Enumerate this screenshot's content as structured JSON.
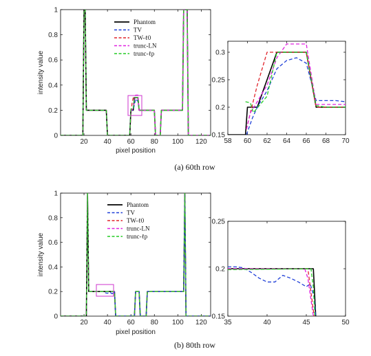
{
  "captions": [
    "(a)  60th row",
    "(b)  80th row"
  ],
  "legend": [
    "Phantom",
    "TV",
    "TW-ℓ0",
    "trunc-LN",
    "trunc-ℓp"
  ],
  "colors": {
    "Phantom": "#000000",
    "TV": "#1f3fd8",
    "TW-ℓ0": "#e0222a",
    "trunc-LN": "#e020e0",
    "trunc-ℓp": "#22cc22",
    "box": "#cc33cc"
  },
  "chart_data": [
    {
      "type": "line",
      "panel": "a-main",
      "xlabel": "pixel position",
      "ylabel": "intensity value",
      "xlim": [
        0,
        128
      ],
      "ylim": [
        0,
        1
      ],
      "xticks": [
        20,
        40,
        60,
        80,
        100,
        120
      ],
      "yticks": [
        0,
        0.2,
        0.4,
        0.6,
        0.8,
        1
      ],
      "series": [
        {
          "name": "Phantom",
          "x": [
            0,
            19,
            20,
            21,
            22,
            38,
            39,
            40,
            59,
            60,
            62,
            63,
            66,
            67,
            68,
            80,
            81,
            82,
            85,
            86,
            104,
            105,
            106,
            108,
            109,
            110,
            128
          ],
          "y": [
            0,
            0,
            1,
            1,
            0.2,
            0.2,
            0.2,
            0,
            0,
            0.2,
            0.2,
            0.3,
            0.3,
            0.2,
            0.2,
            0.2,
            0,
            0,
            0,
            0.2,
            0.2,
            1,
            1,
            1,
            0,
            0,
            0
          ]
        },
        {
          "name": "TV",
          "x": [
            0,
            19,
            20,
            21,
            22,
            38,
            39,
            40,
            59,
            60,
            62,
            64,
            66,
            67,
            68,
            80,
            81,
            82,
            85,
            86,
            104,
            105,
            106,
            108,
            109,
            110,
            128
          ],
          "y": [
            0,
            0,
            1,
            1,
            0.2,
            0.2,
            0.2,
            0,
            0,
            0.2,
            0.2,
            0.29,
            0.27,
            0.21,
            0.2,
            0.2,
            0,
            0,
            0,
            0.2,
            0.2,
            1,
            1,
            1,
            0,
            0,
            0
          ]
        },
        {
          "name": "TW-ℓ0",
          "x": [
            0,
            19,
            20,
            21,
            22,
            38,
            39,
            40,
            59,
            60,
            61,
            62,
            66,
            67,
            68,
            80,
            81,
            82,
            85,
            86,
            104,
            105,
            106,
            108,
            109,
            110,
            128
          ],
          "y": [
            0,
            0,
            1,
            1,
            0.2,
            0.2,
            0.2,
            0,
            0,
            0.17,
            0.26,
            0.3,
            0.3,
            0.2,
            0.2,
            0.2,
            0,
            0,
            0,
            0.2,
            0.2,
            1,
            1,
            1,
            0,
            0,
            0
          ]
        },
        {
          "name": "trunc-LN",
          "x": [
            0,
            19,
            20,
            21,
            22,
            38,
            39,
            40,
            59,
            60,
            62,
            64,
            66,
            67,
            68,
            80,
            81,
            82,
            85,
            86,
            104,
            105,
            106,
            108,
            109,
            110,
            128
          ],
          "y": [
            0,
            0,
            1,
            1,
            0.2,
            0.2,
            0.2,
            0,
            0,
            0.19,
            0.22,
            0.32,
            0.32,
            0.2,
            0.2,
            0.2,
            0,
            0,
            0,
            0.2,
            0.2,
            1,
            1,
            1,
            0,
            0,
            0
          ]
        },
        {
          "name": "trunc-ℓp",
          "x": [
            0,
            19,
            20,
            21,
            22,
            38,
            39,
            40,
            59,
            60,
            62,
            63,
            66,
            67,
            68,
            80,
            81,
            82,
            85,
            86,
            104,
            105,
            106,
            108,
            109,
            110,
            128
          ],
          "y": [
            0,
            0,
            1,
            1,
            0.2,
            0.2,
            0.2,
            0,
            0,
            0.21,
            0.21,
            0.3,
            0.3,
            0.21,
            0.2,
            0.2,
            0,
            0,
            0,
            0.2,
            0.2,
            1,
            1,
            1,
            0,
            0,
            0
          ]
        }
      ]
    },
    {
      "type": "line",
      "panel": "a-zoom",
      "xlim": [
        58,
        70
      ],
      "ylim": [
        0.15,
        0.32
      ],
      "xticks": [
        58,
        60,
        62,
        64,
        66,
        68,
        70
      ],
      "yticks": [
        0.15,
        0.2,
        0.25,
        0.3
      ],
      "series": [
        {
          "name": "Phantom",
          "x": [
            58,
            59.8,
            60,
            61,
            63,
            66,
            67,
            70
          ],
          "y": [
            0.15,
            0.15,
            0.2,
            0.2,
            0.3,
            0.3,
            0.2,
            0.2
          ]
        },
        {
          "name": "TV",
          "x": [
            59.9,
            60.5,
            61,
            62,
            63,
            64,
            65,
            66,
            67,
            68,
            69,
            70
          ],
          "y": [
            0.15,
            0.18,
            0.2,
            0.23,
            0.27,
            0.285,
            0.29,
            0.28,
            0.212,
            0.212,
            0.212,
            0.21
          ]
        },
        {
          "name": "TW-ℓ0",
          "x": [
            59.9,
            60.3,
            61,
            62,
            63,
            66,
            67,
            68,
            70
          ],
          "y": [
            0.16,
            0.19,
            0.24,
            0.3,
            0.3,
            0.3,
            0.2,
            0.2,
            0.2
          ]
        },
        {
          "name": "trunc-LN",
          "x": [
            59.9,
            60.3,
            61,
            62,
            63,
            64,
            65,
            66,
            67,
            68,
            70
          ],
          "y": [
            0.16,
            0.19,
            0.21,
            0.24,
            0.29,
            0.315,
            0.315,
            0.315,
            0.205,
            0.205,
            0.205
          ]
        },
        {
          "name": "trunc-ℓp",
          "x": [
            59.8,
            60.3,
            60.6,
            62,
            63,
            66,
            67,
            68,
            70
          ],
          "y": [
            0.21,
            0.208,
            0.19,
            0.22,
            0.3,
            0.3,
            0.203,
            0.2,
            0.2
          ]
        }
      ]
    },
    {
      "type": "line",
      "panel": "b-main",
      "xlabel": "pixel position",
      "ylabel": "intensity value",
      "xlim": [
        0,
        128
      ],
      "ylim": [
        0,
        1
      ],
      "xticks": [
        20,
        40,
        60,
        80,
        100,
        120
      ],
      "yticks": [
        0,
        0.2,
        0.4,
        0.6,
        0.8,
        1
      ],
      "series": [
        {
          "name": "Phantom",
          "x": [
            0,
            22,
            23,
            24,
            46,
            47,
            63,
            64,
            67,
            68,
            73,
            74,
            104,
            105,
            106,
            107,
            128
          ],
          "y": [
            0,
            0,
            1,
            0.2,
            0.2,
            0,
            0,
            0.2,
            0.2,
            0,
            0,
            0.2,
            0.2,
            0.2,
            1,
            0,
            0
          ]
        },
        {
          "name": "TV",
          "x": [
            0,
            22,
            23,
            24,
            36,
            38,
            40,
            42,
            44,
            46,
            47,
            63,
            64,
            67,
            68,
            73,
            74,
            104,
            105,
            106,
            107,
            128
          ],
          "y": [
            0,
            0,
            1,
            0.2,
            0.2,
            0.19,
            0.186,
            0.195,
            0.182,
            0.2,
            0,
            0,
            0.2,
            0.2,
            0,
            0,
            0.2,
            0.2,
            0.2,
            1,
            0,
            0
          ]
        },
        {
          "name": "TW-ℓ0",
          "x": [
            0,
            22,
            23,
            24,
            46,
            47,
            63,
            64,
            67,
            68,
            73,
            74,
            104,
            105,
            106,
            107,
            128
          ],
          "y": [
            0,
            0,
            1,
            0.2,
            0.2,
            0,
            0,
            0.2,
            0.2,
            0,
            0,
            0.2,
            0.2,
            0.2,
            1,
            0,
            0
          ]
        },
        {
          "name": "trunc-LN",
          "x": [
            0,
            22,
            23,
            24,
            46,
            47,
            63,
            64,
            67,
            68,
            73,
            74,
            104,
            105,
            106,
            107,
            128
          ],
          "y": [
            0,
            0,
            1,
            0.2,
            0.2,
            0,
            0,
            0.2,
            0.2,
            0,
            0,
            0.2,
            0.2,
            0.2,
            1,
            0,
            0
          ]
        },
        {
          "name": "trunc-ℓp",
          "x": [
            0,
            22,
            23,
            24,
            46,
            47,
            63,
            64,
            67,
            68,
            73,
            74,
            104,
            105,
            106,
            107,
            128
          ],
          "y": [
            0,
            0,
            1,
            0.2,
            0.2,
            0,
            0,
            0.2,
            0.2,
            0,
            0,
            0.2,
            0.2,
            0.2,
            1,
            0,
            0
          ]
        }
      ]
    },
    {
      "type": "line",
      "panel": "b-zoom",
      "xlim": [
        35,
        50
      ],
      "ylim": [
        0.15,
        0.25
      ],
      "xticks": [
        35,
        40,
        45,
        50
      ],
      "yticks": [
        0.15,
        0.2,
        0.25
      ],
      "series": [
        {
          "name": "Phantom",
          "x": [
            35,
            45.9,
            46.2
          ],
          "y": [
            0.2,
            0.2,
            0.15
          ]
        },
        {
          "name": "TV",
          "x": [
            35,
            36,
            37,
            38,
            39,
            40,
            41,
            42,
            43,
            44,
            45,
            45.5,
            46,
            46.2
          ],
          "y": [
            0.202,
            0.202,
            0.201,
            0.196,
            0.19,
            0.186,
            0.186,
            0.193,
            0.19,
            0.186,
            0.181,
            0.184,
            0.17,
            0.15
          ]
        },
        {
          "name": "TW-ℓ0",
          "x": [
            35,
            45.2,
            45.6,
            46
          ],
          "y": [
            0.2,
            0.2,
            0.175,
            0.15
          ]
        },
        {
          "name": "trunc-LN",
          "x": [
            35,
            44.8,
            45.2,
            45.9
          ],
          "y": [
            0.2,
            0.2,
            0.19,
            0.15
          ]
        },
        {
          "name": "trunc-ℓp",
          "x": [
            35,
            45.6,
            45.9,
            46.1
          ],
          "y": [
            0.199,
            0.2,
            0.18,
            0.15
          ]
        }
      ]
    }
  ]
}
